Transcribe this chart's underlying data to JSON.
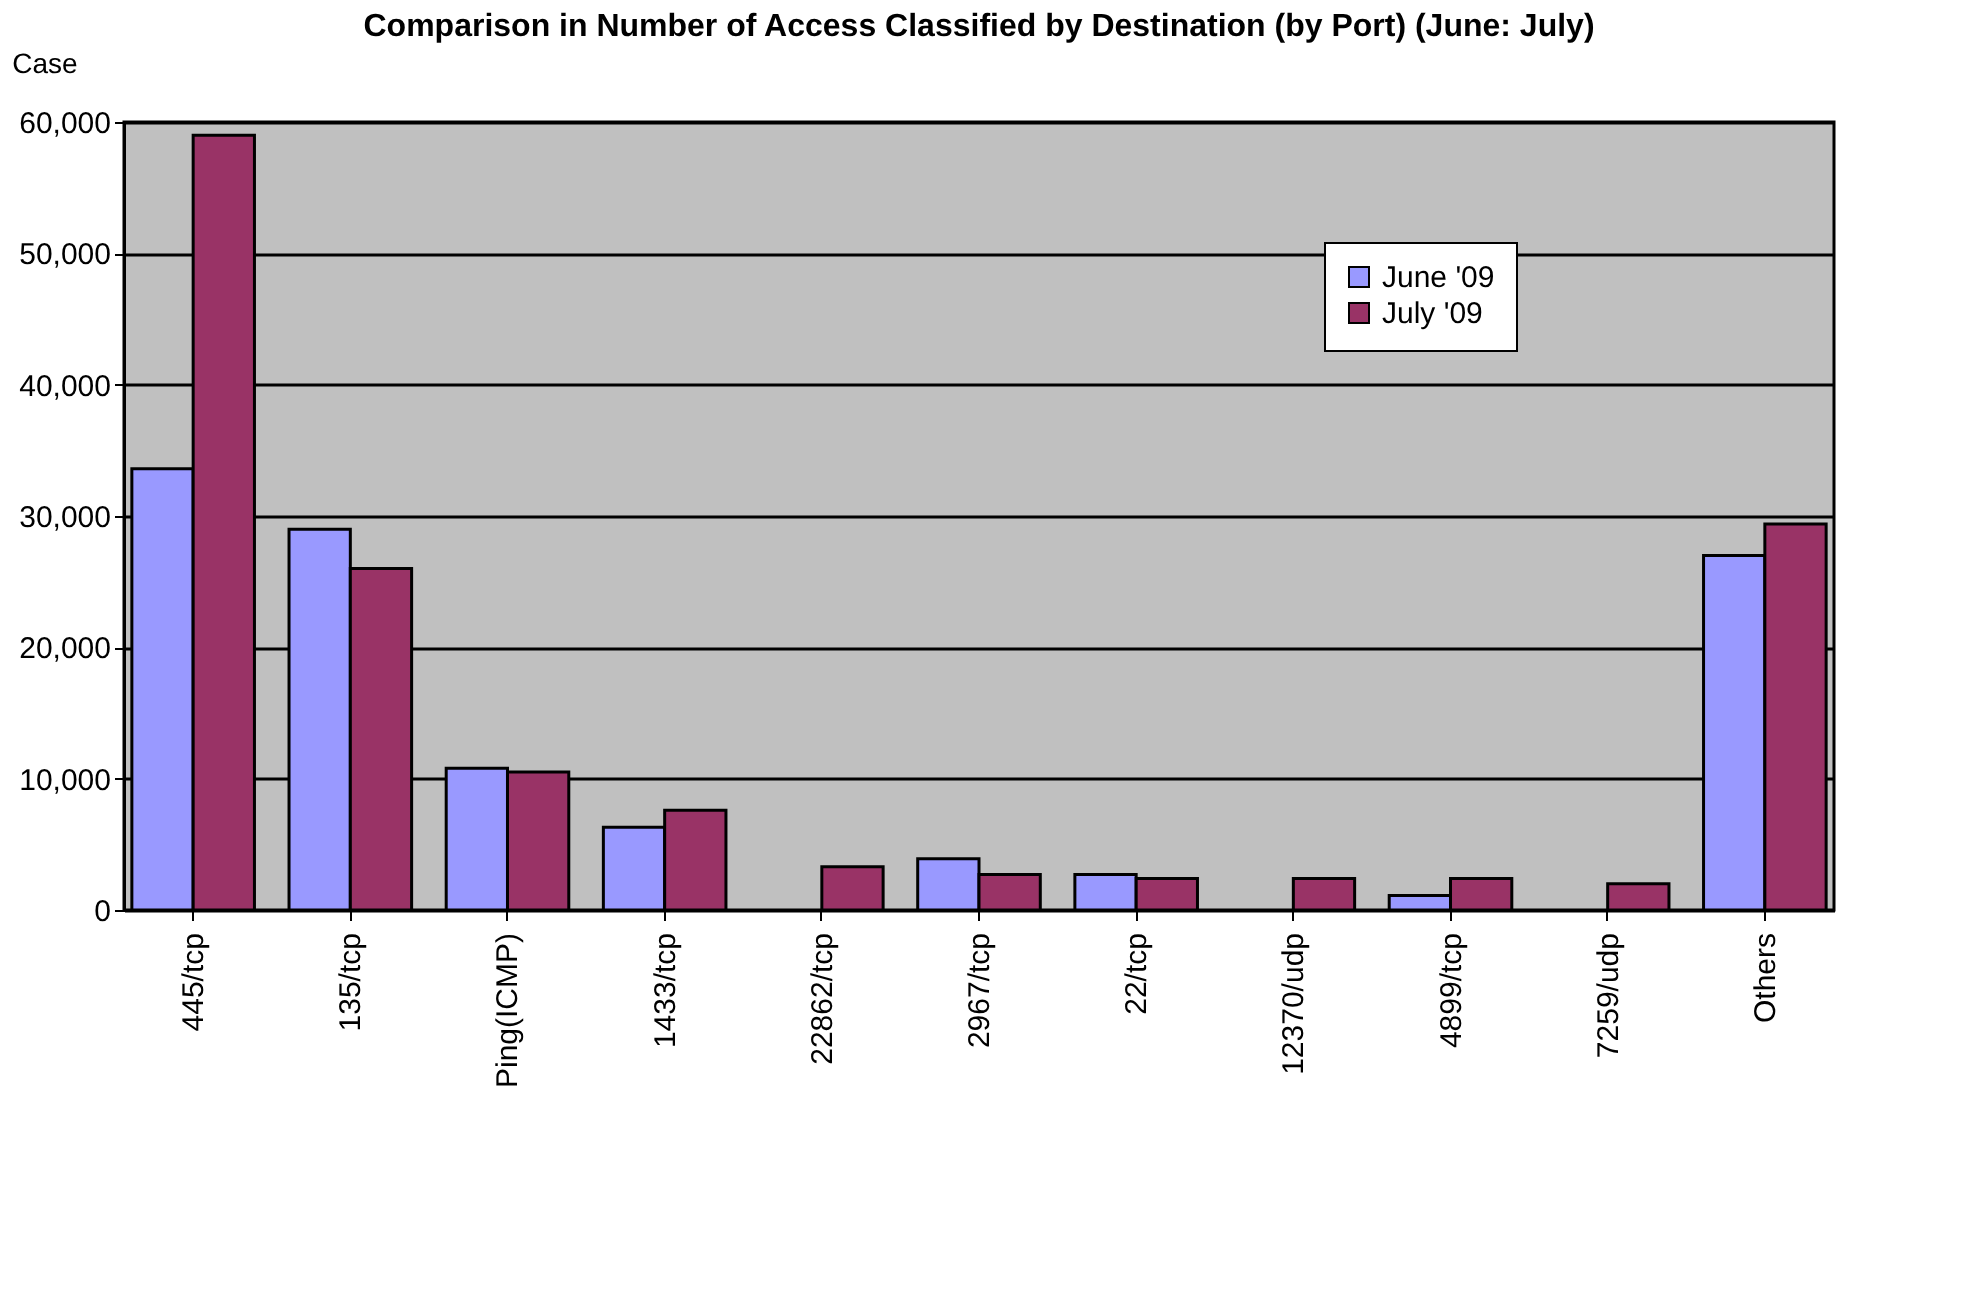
{
  "chart_data": {
    "type": "bar",
    "title": "Comparison in Number of Access Classified by Destination (by Port) (June: July)",
    "ylabel": "Case",
    "categories": [
      "445/tcp",
      "135/tcp",
      "Ping(ICMP)",
      "1433/tcp",
      "22862/tcp",
      "2967/tcp",
      "22/tcp",
      "12370/udp",
      "4899/tcp",
      "7259/udp",
      "Others"
    ],
    "series": [
      {
        "name": "June '09",
        "color": "#9999ff",
        "values": [
          33600,
          29000,
          10800,
          6300,
          null,
          3900,
          2700,
          null,
          1100,
          null,
          27000
        ]
      },
      {
        "name": "July '09",
        "color": "#993366",
        "values": [
          59000,
          26000,
          10500,
          7600,
          3300,
          2700,
          2400,
          2400,
          2400,
          2000,
          29400
        ]
      }
    ],
    "ylim": [
      0,
      60000
    ],
    "yticks": [
      0,
      {
        "value": 10000,
        "label": "10,000"
      },
      {
        "value": 20000,
        "label": "20,000"
      },
      {
        "value": 30000,
        "label": "30,000"
      },
      {
        "value": 40000,
        "label": "40,000"
      },
      {
        "value": 50000,
        "label": "50,000"
      },
      {
        "value": 60000,
        "label": "60,000"
      }
    ],
    "grid": "y",
    "legend": "top right"
  }
}
